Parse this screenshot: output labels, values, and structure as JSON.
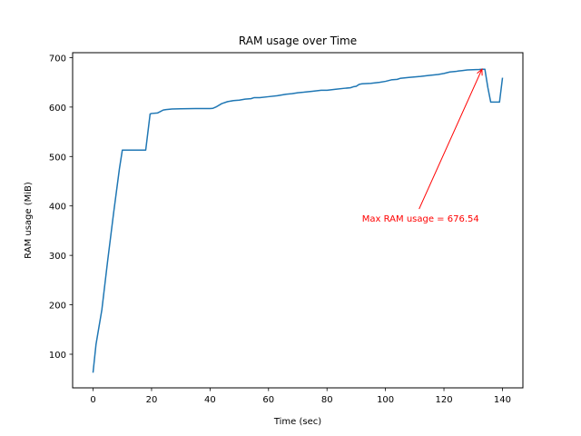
{
  "chart_data": {
    "type": "line",
    "title": "RAM usage over Time",
    "xlabel": "Time (sec)",
    "ylabel": "RAM usage (MiB)",
    "xlim": [
      -7,
      147
    ],
    "ylim": [
      32,
      710
    ],
    "xticks": [
      0,
      20,
      40,
      60,
      80,
      100,
      120,
      140
    ],
    "yticks": [
      100,
      200,
      300,
      400,
      500,
      600,
      700
    ],
    "grid": false,
    "legend": "none",
    "colors": {
      "line": "#1f77b4",
      "annotation": "#ff0000"
    },
    "series": [
      {
        "x": [
          0,
          1,
          3,
          5,
          7,
          9,
          10,
          11,
          18,
          19.5,
          20,
          22,
          23,
          24,
          25,
          27,
          30,
          35,
          40,
          41,
          42,
          44,
          46,
          48,
          50,
          52,
          54,
          55,
          57,
          60,
          63,
          66,
          68,
          70,
          72,
          75,
          78,
          80,
          83,
          86,
          88,
          89,
          90,
          91,
          92,
          95,
          98,
          100,
          102,
          104,
          105,
          108,
          112,
          115,
          118,
          120,
          122,
          124,
          125,
          128,
          130,
          132,
          133,
          134,
          135,
          136,
          138,
          139,
          140
        ],
        "y": [
          64,
          120,
          190,
          290,
          385,
          475,
          513,
          513,
          513,
          586,
          587,
          588,
          591,
          594,
          595,
          596,
          596.5,
          597,
          597,
          597.5,
          600,
          607,
          611,
          613,
          614,
          616,
          617,
          619,
          619,
          621,
          623,
          626,
          627,
          629,
          630,
          632,
          634,
          634,
          636,
          638,
          639,
          641,
          642,
          646,
          647,
          648,
          650,
          652,
          655,
          656,
          658,
          660,
          662,
          664,
          666,
          668,
          671,
          672,
          673,
          675,
          675.5,
          676,
          676.54,
          676.54,
          640,
          610,
          610,
          610,
          658
        ]
      }
    ],
    "annotation": {
      "text": "Max RAM usage = 676.54",
      "x": 133,
      "y": 676.54,
      "text_x": 112,
      "text_y": 370
    }
  }
}
